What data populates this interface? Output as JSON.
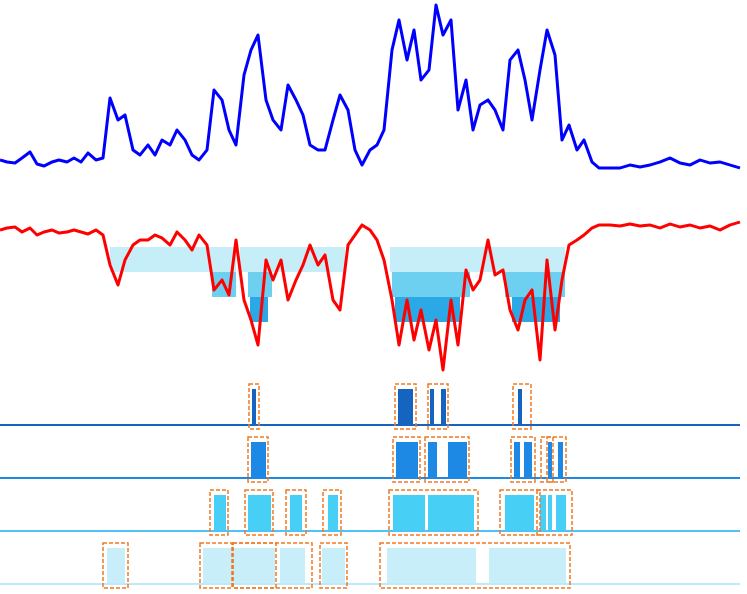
{
  "chart_data": [
    {
      "type": "line",
      "xlim": [
        0,
        747
      ],
      "ylim": [
        0,
        170
      ],
      "x": [
        0,
        7,
        15,
        22,
        30,
        37,
        44,
        52,
        59,
        67,
        74,
        81,
        88,
        96,
        103,
        110,
        118,
        125,
        133,
        140,
        148,
        155,
        162,
        170,
        177,
        185,
        192,
        199,
        207,
        214,
        222,
        229,
        236,
        244,
        251,
        258,
        266,
        273,
        281,
        288,
        296,
        303,
        310,
        318,
        325,
        333,
        340,
        348,
        355,
        362,
        370,
        377,
        384,
        392,
        399,
        407,
        414,
        421,
        429,
        436,
        443,
        451,
        458,
        466,
        473,
        480,
        488,
        495,
        503,
        510,
        518,
        525,
        532,
        540,
        547,
        555,
        562,
        569,
        577,
        584,
        592,
        599,
        610,
        620,
        630,
        640,
        650,
        660,
        670,
        680,
        690,
        700,
        710,
        720,
        730,
        740
      ],
      "series": [
        {
          "color": "#0000ff",
          "values": [
            10,
            8,
            7,
            12,
            18,
            6,
            4,
            8,
            10,
            8,
            12,
            8,
            17,
            10,
            12,
            72,
            50,
            55,
            20,
            15,
            25,
            15,
            30,
            25,
            40,
            30,
            15,
            10,
            20,
            80,
            70,
            40,
            25,
            95,
            120,
            135,
            70,
            50,
            40,
            85,
            70,
            55,
            25,
            20,
            20,
            50,
            75,
            60,
            20,
            5,
            20,
            25,
            40,
            120,
            150,
            110,
            140,
            90,
            100,
            165,
            135,
            150,
            60,
            90,
            40,
            65,
            70,
            60,
            40,
            110,
            120,
            90,
            50,
            100,
            140,
            115,
            30,
            45,
            20,
            30,
            8,
            2,
            2,
            2,
            5,
            3,
            5,
            8,
            12,
            7,
            5,
            10,
            7,
            8,
            5,
            2
          ]
        }
      ]
    },
    {
      "type": "line",
      "xlim": [
        0,
        747
      ],
      "ylim": [
        -150,
        10
      ],
      "x": [
        0,
        7,
        15,
        22,
        30,
        37,
        44,
        52,
        59,
        67,
        74,
        81,
        88,
        96,
        103,
        110,
        118,
        125,
        133,
        140,
        148,
        155,
        162,
        170,
        177,
        185,
        192,
        199,
        207,
        214,
        222,
        229,
        236,
        244,
        251,
        258,
        266,
        273,
        281,
        288,
        296,
        303,
        310,
        318,
        325,
        333,
        340,
        348,
        355,
        362,
        370,
        377,
        384,
        392,
        399,
        407,
        414,
        421,
        429,
        436,
        443,
        451,
        458,
        466,
        473,
        480,
        488,
        495,
        503,
        510,
        518,
        525,
        532,
        540,
        547,
        555,
        562,
        569,
        577,
        584,
        592,
        599,
        610,
        620,
        630,
        640,
        650,
        660,
        670,
        680,
        690,
        700,
        710,
        720,
        730,
        740
      ],
      "bands": [
        {
          "from": -19,
          "to": -44,
          "color": "#c6eef9",
          "spans": [
            [
              110,
              236
            ],
            [
              240,
              345
            ],
            [
              390,
              565
            ]
          ]
        },
        {
          "from": -44,
          "to": -69,
          "color": "#6dd0f0",
          "spans": [
            [
              212,
              236
            ],
            [
              248,
              272
            ],
            [
              392,
              470
            ],
            [
              505,
              565
            ]
          ]
        },
        {
          "from": -69,
          "to": -94,
          "color": "#2aa9e6",
          "spans": [
            [
              250,
              268
            ],
            [
              395,
              460
            ],
            [
              512,
              560
            ]
          ]
        }
      ],
      "series": [
        {
          "color": "#ff0000",
          "values": [
            -2,
            0,
            1,
            -4,
            0,
            -7,
            -4,
            -2,
            -5,
            -4,
            -2,
            -4,
            -6,
            -2,
            -7,
            -37,
            -57,
            -32,
            -17,
            -12,
            -12,
            -7,
            -10,
            -17,
            -4,
            -12,
            -22,
            -7,
            -17,
            -62,
            -52,
            -67,
            -12,
            -72,
            -92,
            -117,
            -32,
            -52,
            -32,
            -72,
            -52,
            -37,
            -17,
            -37,
            -27,
            -72,
            -82,
            -17,
            -7,
            3,
            -2,
            -12,
            -32,
            -72,
            -117,
            -72,
            -112,
            -82,
            -122,
            -92,
            -142,
            -72,
            -117,
            -42,
            -62,
            -52,
            -12,
            -47,
            -42,
            -82,
            -102,
            -72,
            -62,
            -132,
            -32,
            -102,
            -52,
            -17,
            -12,
            -7,
            0,
            3,
            3,
            2,
            4,
            2,
            3,
            0,
            4,
            1,
            3,
            0,
            2,
            -2,
            3,
            6
          ]
        }
      ]
    },
    {
      "type": "event-rows",
      "xlim": [
        0,
        747
      ],
      "box_color": "#f07820",
      "rows": [
        {
          "color": "#1565c0",
          "bar_color": "#1565c0",
          "events": [
            [
              252,
              256
            ],
            [
              398,
              413
            ],
            [
              430,
              434
            ],
            [
              441,
              446
            ],
            [
              518,
              522
            ]
          ],
          "boxes": [
            [
              249,
              259
            ],
            [
              395,
              416
            ],
            [
              428,
              448
            ],
            [
              513,
              531
            ]
          ]
        },
        {
          "color": "#1e88e5",
          "bar_color": "#1e88e5",
          "events": [
            [
              251,
              266
            ],
            [
              396,
              418
            ],
            [
              428,
              437
            ],
            [
              448,
              467
            ],
            [
              514,
              520
            ],
            [
              524,
              532
            ],
            [
              548,
              552
            ],
            [
              558,
              563
            ]
          ],
          "boxes": [
            [
              248,
              268
            ],
            [
              393,
              420
            ],
            [
              425,
              469
            ],
            [
              511,
              535
            ],
            [
              541,
              553
            ],
            [
              547,
              566
            ]
          ]
        },
        {
          "color": "#4fc3f7",
          "bar_color": "#48cff5",
          "events": [
            [
              214,
              226
            ],
            [
              248,
              271
            ],
            [
              290,
              302
            ],
            [
              328,
              338
            ],
            [
              393,
              425
            ],
            [
              428,
              474
            ],
            [
              505,
              534
            ],
            [
              540,
              546
            ],
            [
              548,
              552
            ],
            [
              556,
              566
            ]
          ],
          "boxes": [
            [
              210,
              228
            ],
            [
              245,
              273
            ],
            [
              286,
              306
            ],
            [
              323,
              341
            ],
            [
              389,
              478
            ],
            [
              500,
              540
            ],
            [
              537,
              572
            ]
          ]
        },
        {
          "color": "#bde9f8",
          "bar_color": "#c8eef9",
          "events": [
            [
              107,
              125
            ],
            [
              203,
              275
            ],
            [
              280,
              305
            ],
            [
              322,
              345
            ],
            [
              387,
              476
            ],
            [
              489,
              566
            ]
          ],
          "boxes": [
            [
              103,
              128
            ],
            [
              200,
              232
            ],
            [
              233,
              276
            ],
            [
              233,
              312
            ],
            [
              320,
              347
            ],
            [
              380,
              570
            ]
          ]
        }
      ]
    }
  ]
}
